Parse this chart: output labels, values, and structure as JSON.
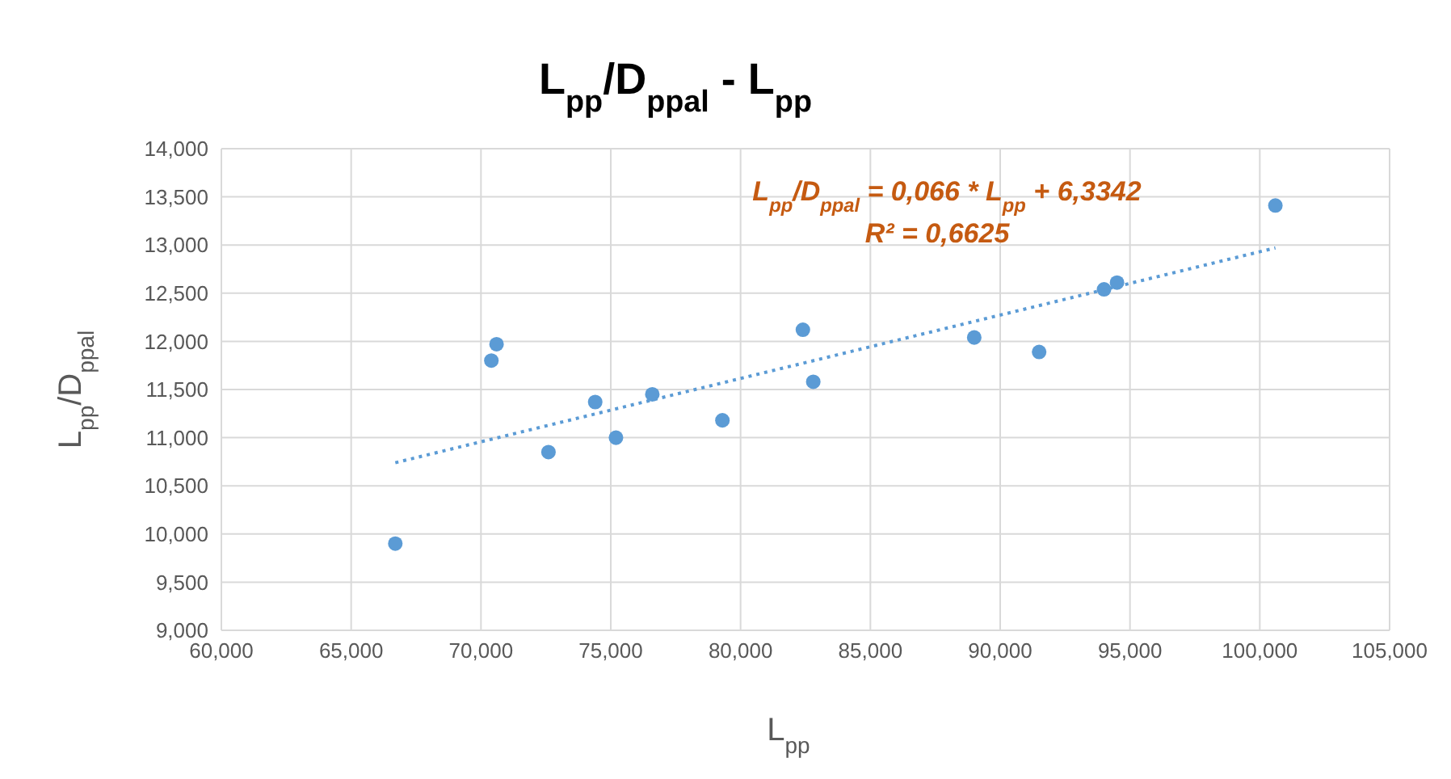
{
  "chart_data": {
    "type": "scatter",
    "title": "L$_{pp}$/D$_{ppal}$ - L$_{pp}$",
    "xlabel": "L$_{pp}$",
    "ylabel": "L$_{pp}$/D$_{ppal}$",
    "annotations": [
      "L$_{pp}$/D$_{ppal}$ = 0,066 * L$_{pp}$ + 6,3342",
      "R² = 0,6625"
    ],
    "xlim": [
      60,
      105
    ],
    "xticks": [
      {
        "value": 60,
        "label": "60,000"
      },
      {
        "value": 65,
        "label": "65,000"
      },
      {
        "value": 70,
        "label": "70,000"
      },
      {
        "value": 75,
        "label": "75,000"
      },
      {
        "value": 80,
        "label": "80,000"
      },
      {
        "value": 85,
        "label": "85,000"
      },
      {
        "value": 90,
        "label": "90,000"
      },
      {
        "value": 95,
        "label": "95,000"
      },
      {
        "value": 100,
        "label": "100,000"
      },
      {
        "value": 105,
        "label": "105,000"
      }
    ],
    "ylim": [
      9,
      14
    ],
    "yticks": [
      {
        "value": 9,
        "label": "9,000"
      },
      {
        "value": 9.5,
        "label": "9,500"
      },
      {
        "value": 10,
        "label": "10,000"
      },
      {
        "value": 10.5,
        "label": "10,500"
      },
      {
        "value": 11,
        "label": "11,000"
      },
      {
        "value": 11.5,
        "label": "11,500"
      },
      {
        "value": 12,
        "label": "12,000"
      },
      {
        "value": 12.5,
        "label": "12,500"
      },
      {
        "value": 13,
        "label": "13,000"
      },
      {
        "value": 13.5,
        "label": "13,500"
      },
      {
        "value": 14,
        "label": "14,000"
      }
    ],
    "grid": true,
    "marker": "circle",
    "series": [
      {
        "type": "scatter",
        "color": "#5b9bd5",
        "x": [
          66.7,
          70.4,
          70.6,
          72.6,
          74.4,
          75.2,
          76.6,
          79.3,
          82.4,
          82.8,
          89.0,
          91.5,
          94.0,
          94.5,
          100.6
        ],
        "values": [
          9.9,
          11.8,
          11.97,
          10.85,
          11.37,
          11.0,
          11.45,
          11.18,
          12.12,
          11.58,
          12.04,
          11.89,
          12.54,
          12.61,
          13.41
        ]
      },
      {
        "type": "line",
        "color": "#5b9bd5",
        "line_style": "dotted",
        "marker": "none",
        "x": [
          66.7,
          100.6
        ],
        "values": [
          10.74,
          12.97
        ]
      }
    ]
  }
}
